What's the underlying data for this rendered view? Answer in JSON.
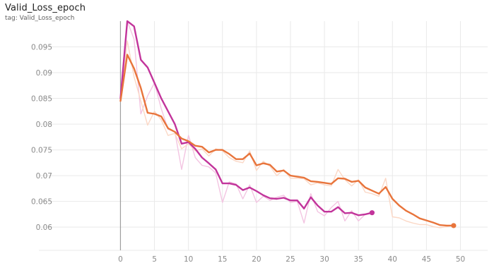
{
  "header": {
    "title": "Valid_Loss_epoch",
    "tag": "tag: Valid_Loss_epoch"
  },
  "colors": {
    "run_pink": "#c2349b",
    "run_pink_raw": "#f3c5e2",
    "run_orange": "#e8743b",
    "run_orange_raw": "#fbd8c6",
    "grid": "#e9e9e9",
    "zero_axis": "#9e9e9e"
  },
  "chart_data": {
    "type": "line",
    "title": "Valid_Loss_epoch",
    "subtitle": "tag: Valid_Loss_epoch",
    "xlabel": "",
    "ylabel": "",
    "xlim": [
      -12,
      54
    ],
    "ylim": [
      0.0555,
      0.1
    ],
    "x_ticks": [
      0,
      5,
      10,
      15,
      20,
      25,
      30,
      35,
      40,
      45,
      50
    ],
    "y_ticks": [
      0.06,
      0.065,
      0.07,
      0.075,
      0.08,
      0.085,
      0.09,
      0.095
    ],
    "y_tick_labels": [
      "0.06",
      "0.065",
      "0.07",
      "0.075",
      "0.08",
      "0.085",
      "0.09",
      "0.095"
    ],
    "grid": true,
    "series": [
      {
        "color": "#c2349b",
        "raw_color": "#f3c5e2",
        "x": [
          0,
          1,
          2,
          3,
          4,
          5,
          6,
          7,
          8,
          9,
          10,
          11,
          12,
          13,
          14,
          15,
          16,
          17,
          18,
          19,
          20,
          21,
          22,
          23,
          24,
          25,
          26,
          27,
          28,
          29,
          30,
          31,
          32,
          33,
          34,
          35,
          36,
          37
        ],
        "smoothed": [
          0.085,
          0.1,
          0.099,
          0.0925,
          0.091,
          0.088,
          0.085,
          0.0825,
          0.08,
          0.0762,
          0.0765,
          0.0752,
          0.0735,
          0.0724,
          0.0712,
          0.0685,
          0.0685,
          0.0682,
          0.0672,
          0.0677,
          0.067,
          0.0662,
          0.0656,
          0.0655,
          0.0657,
          0.0652,
          0.0652,
          0.0636,
          0.0658,
          0.0642,
          0.063,
          0.063,
          0.0639,
          0.0627,
          0.0628,
          0.0623,
          0.0625,
          0.0628
        ],
        "raw": [
          0.085,
          0.1,
          0.0965,
          0.082,
          0.0855,
          0.088,
          0.083,
          0.079,
          0.0785,
          0.0712,
          0.0778,
          0.0735,
          0.072,
          0.0717,
          0.0705,
          0.0648,
          0.0688,
          0.0684,
          0.0655,
          0.0682,
          0.0648,
          0.066,
          0.0652,
          0.0658,
          0.0662,
          0.0648,
          0.065,
          0.0608,
          0.0665,
          0.063,
          0.0622,
          0.0638,
          0.065,
          0.0612,
          0.0632,
          0.0612,
          0.0625,
          0.0628
        ]
      },
      {
        "color": "#e8743b",
        "raw_color": "#fbd8c6",
        "x": [
          0,
          1,
          2,
          3,
          4,
          5,
          6,
          7,
          8,
          9,
          10,
          11,
          12,
          13,
          14,
          15,
          16,
          17,
          18,
          19,
          20,
          21,
          22,
          23,
          24,
          25,
          26,
          27,
          28,
          29,
          30,
          31,
          32,
          33,
          34,
          35,
          36,
          37,
          38,
          39,
          40,
          41,
          42,
          43,
          44,
          45,
          46,
          47,
          48,
          49
        ],
        "smoothed": [
          0.0845,
          0.0935,
          0.0908,
          0.087,
          0.0822,
          0.082,
          0.0815,
          0.0792,
          0.0785,
          0.0772,
          0.0767,
          0.0758,
          0.0756,
          0.0745,
          0.075,
          0.075,
          0.0742,
          0.0732,
          0.0732,
          0.0743,
          0.072,
          0.0724,
          0.0721,
          0.0708,
          0.071,
          0.07,
          0.0698,
          0.0696,
          0.0689,
          0.0688,
          0.0686,
          0.0684,
          0.0695,
          0.0694,
          0.0688,
          0.069,
          0.0677,
          0.0671,
          0.0665,
          0.0678,
          0.0655,
          0.0642,
          0.0632,
          0.0625,
          0.0617,
          0.0613,
          0.0609,
          0.0604,
          0.0603,
          0.0603
        ],
        "raw": [
          0.0845,
          0.0962,
          0.0892,
          0.0845,
          0.0798,
          0.0825,
          0.0808,
          0.0778,
          0.0782,
          0.0752,
          0.0762,
          0.0748,
          0.0752,
          0.0738,
          0.0752,
          0.0748,
          0.0735,
          0.0728,
          0.0725,
          0.0748,
          0.071,
          0.0728,
          0.0718,
          0.07,
          0.0712,
          0.0695,
          0.0695,
          0.0694,
          0.0682,
          0.0686,
          0.0682,
          0.068,
          0.0712,
          0.0692,
          0.068,
          0.0692,
          0.0668,
          0.0665,
          0.066,
          0.0695,
          0.062,
          0.0618,
          0.0612,
          0.0608,
          0.0605,
          0.0605,
          0.0601,
          0.0599,
          0.0601,
          0.0603
        ]
      }
    ]
  }
}
